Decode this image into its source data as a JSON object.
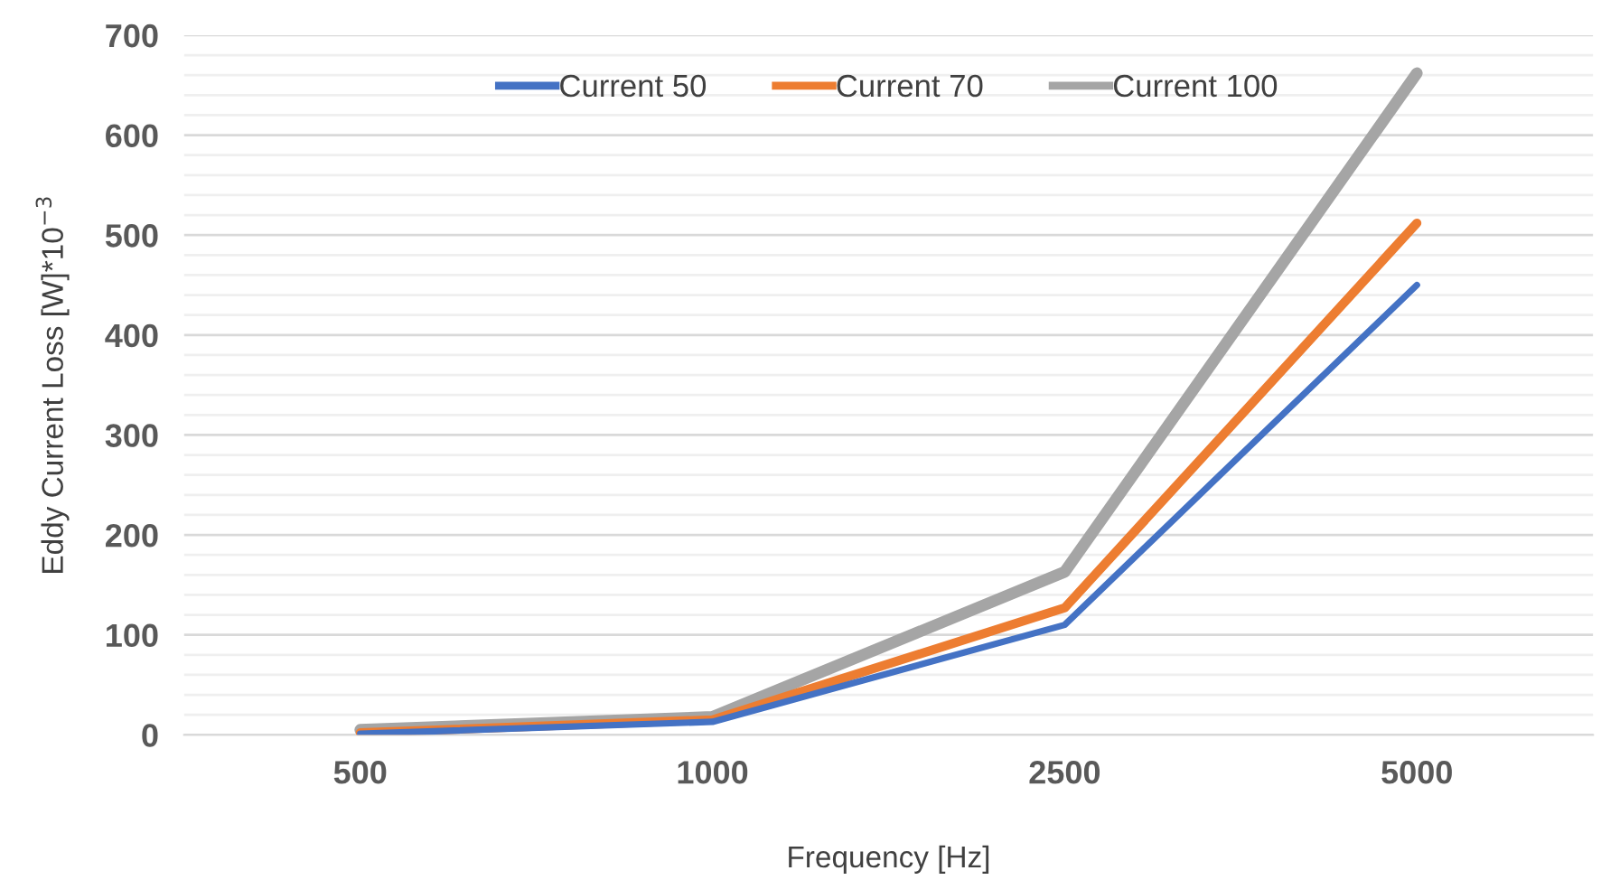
{
  "chart_data": {
    "type": "line",
    "xlabel": "Frequency [Hz]",
    "ylabel": "Eddy Current Loss [W]*10$^{−3}$",
    "categories": [
      "500",
      "1000",
      "2500",
      "5000"
    ],
    "series": [
      {
        "name": "Current 50",
        "color": "#4472c4",
        "values": [
          1,
          13,
          110,
          450
        ]
      },
      {
        "name": "Current 70",
        "color": "#ed7d31",
        "values": [
          2,
          15,
          127,
          512
        ]
      },
      {
        "name": "Current 100",
        "color": "#a5a5a5",
        "values": [
          5,
          18,
          163,
          662
        ]
      }
    ],
    "ylim": [
      0,
      700
    ],
    "yticks": [
      0,
      {
        "value": 20,
        "label": null
      },
      {
        "value": 40,
        "label": null
      },
      {
        "value": 60,
        "label": null
      },
      {
        "value": 80,
        "label": null
      },
      100,
      {
        "value": 120,
        "label": null
      },
      {
        "value": 140,
        "label": null
      },
      {
        "value": 160,
        "label": null
      },
      {
        "value": 180,
        "label": null
      },
      200,
      {
        "value": 220,
        "label": null
      },
      {
        "value": 240,
        "label": null
      },
      {
        "value": 260,
        "label": null
      },
      {
        "value": 280,
        "label": null
      },
      300,
      {
        "value": 320,
        "label": null
      },
      {
        "value": 340,
        "label": null
      },
      {
        "value": 360,
        "label": null
      },
      {
        "value": 380,
        "label": null
      },
      400,
      {
        "value": 420,
        "label": null
      },
      {
        "value": 440,
        "label": null
      },
      {
        "value": 460,
        "label": null
      },
      {
        "value": 480,
        "label": null
      },
      500,
      {
        "value": 520,
        "label": null
      },
      {
        "value": 540,
        "label": null
      },
      {
        "value": 560,
        "label": null
      },
      {
        "value": 580,
        "label": null
      },
      600,
      {
        "value": 620,
        "label": null
      },
      {
        "value": 640,
        "label": null
      },
      {
        "value": 660,
        "label": null
      },
      {
        "value": 680,
        "label": null
      },
      700
    ],
    "grid": "y",
    "legend": "top",
    "marker": "none",
    "line_style": "solid"
  }
}
